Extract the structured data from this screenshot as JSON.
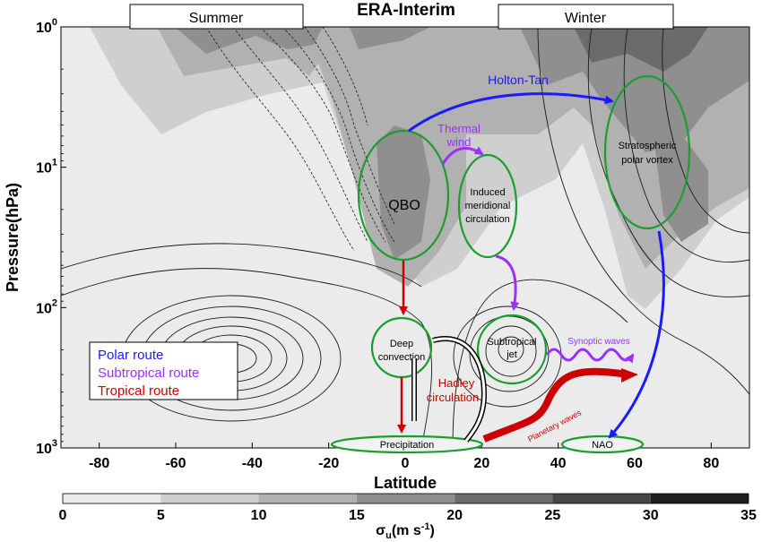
{
  "chart_data": {
    "type": "heatmap",
    "title": "ERA-Interim",
    "xlabel": "Latitude",
    "ylabel": "Pressure(hPa)",
    "xlim": [
      -90,
      90
    ],
    "x_ticks": [
      -80,
      -60,
      -40,
      -20,
      0,
      20,
      40,
      60,
      80
    ],
    "y_scale": "log",
    "y_ticks": [
      {
        "base": "10",
        "exp": "0"
      },
      {
        "base": "10",
        "exp": "1"
      },
      {
        "base": "10",
        "exp": "2"
      },
      {
        "base": "10",
        "exp": "3"
      }
    ],
    "season_labels": [
      "Summer",
      "Winter"
    ],
    "colorbar": {
      "label": "σ",
      "label_sub": "u",
      "label_units": "(m s",
      "label_units_sup": "-1",
      "label_close": ")",
      "ticks": [
        "0",
        "5",
        "10",
        "15",
        "20",
        "25",
        "30",
        "35"
      ],
      "colors": [
        "#ebebeb",
        "#cfcfcf",
        "#b1b1b1",
        "#8f8f8f",
        "#6b6b6b",
        "#474747",
        "#1e1e1e"
      ]
    },
    "legend": [
      {
        "label": "Polar route",
        "color": "#1a1aff"
      },
      {
        "label": "Subtropical route",
        "color": "#9b30ff"
      },
      {
        "label": "Tropical route",
        "color": "#cc0000"
      }
    ],
    "nodes": {
      "qbo": "QBO",
      "imc": [
        "Induced",
        "meridional",
        "circulation"
      ],
      "spv": [
        "Stratospheric",
        "polar vortex"
      ],
      "deep": [
        "Deep",
        "convection"
      ],
      "jet": [
        "Subtropical",
        "jet"
      ],
      "precip": "Precipitation",
      "nao": "NAO"
    },
    "arrow_labels": {
      "holton": "Holton-Tan",
      "thermal": [
        "Thermal",
        "wind"
      ],
      "hadley": [
        "Hadley",
        "circulation"
      ],
      "synoptic": "Synoptic waves",
      "planetary": "Planetary waves"
    }
  }
}
